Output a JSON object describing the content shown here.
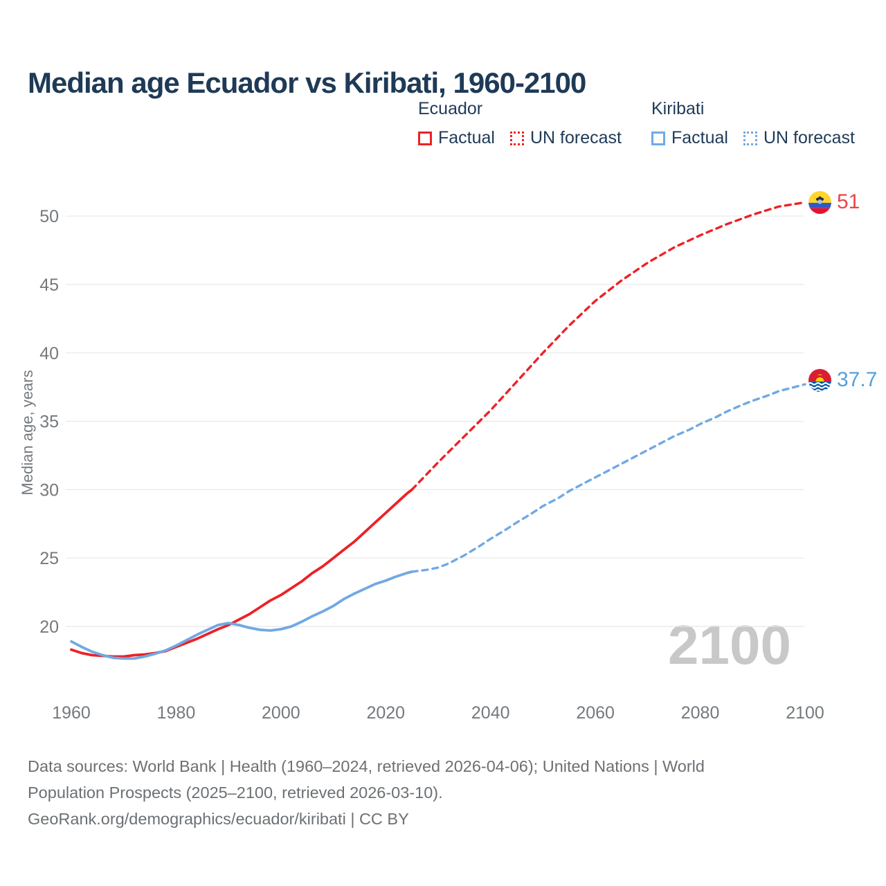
{
  "title": "Median age Ecuador vs Kiribati, 1960-2100",
  "legend": {
    "groups": [
      {
        "country": "Ecuador",
        "factual_label": "Factual",
        "forecast_label": "UN forecast"
      },
      {
        "country": "Kiribati",
        "factual_label": "Factual",
        "forecast_label": "UN forecast"
      }
    ]
  },
  "watermark": "2100",
  "end_labels": {
    "ecuador": "51",
    "kiribati": "37.7"
  },
  "footer": {
    "line1": "Data sources: World Bank | Health (1960–2024, retrieved 2026-04-06); United Nations | World",
    "line2": "Population Prospects (2025–2100, retrieved 2026-03-10).",
    "line3": "GeoRank.org/demographics/ecuador/kiribati | CC BY"
  },
  "colors": {
    "ecuador": "#ec2227",
    "kiribati": "#70a9e3",
    "ecuador_label": "#ef4343",
    "kiribati_label": "#54a0dc",
    "title_text": "#1e3a56",
    "axis_text": "#74797d",
    "footer_text": "#6b7074",
    "gridline": "#e8e8e8",
    "watermark": "#c8c8c8"
  },
  "chart_data": {
    "type": "line",
    "title": "Median age Ecuador vs Kiribati, 1960-2100",
    "xlabel": "",
    "ylabel": "Median age, years",
    "xlim": [
      1958,
      2103
    ],
    "ylim": [
      17.5,
      52.5
    ],
    "xticks": [
      1960,
      1980,
      2000,
      2020,
      2040,
      2060,
      2080,
      2100
    ],
    "yticks": [
      20,
      25,
      30,
      35,
      40,
      45,
      50
    ],
    "grid": "horizontal",
    "legend_position": "top",
    "series": [
      {
        "name": "Ecuador Factual",
        "style": "solid",
        "color": "#ec2227",
        "points": [
          [
            1960,
            18.3
          ],
          [
            1962,
            18.05
          ],
          [
            1964,
            17.9
          ],
          [
            1966,
            17.85
          ],
          [
            1968,
            17.8
          ],
          [
            1970,
            17.8
          ],
          [
            1972,
            17.9
          ],
          [
            1974,
            17.95
          ],
          [
            1976,
            18.05
          ],
          [
            1978,
            18.2
          ],
          [
            1980,
            18.5
          ],
          [
            1982,
            18.8
          ],
          [
            1984,
            19.1
          ],
          [
            1986,
            19.45
          ],
          [
            1988,
            19.8
          ],
          [
            1990,
            20.1
          ],
          [
            1992,
            20.5
          ],
          [
            1994,
            20.9
          ],
          [
            1996,
            21.4
          ],
          [
            1998,
            21.9
          ],
          [
            2000,
            22.3
          ],
          [
            2002,
            22.8
          ],
          [
            2004,
            23.3
          ],
          [
            2006,
            23.9
          ],
          [
            2008,
            24.4
          ],
          [
            2010,
            25.0
          ],
          [
            2012,
            25.6
          ],
          [
            2014,
            26.2
          ],
          [
            2016,
            26.9
          ],
          [
            2018,
            27.6
          ],
          [
            2020,
            28.3
          ],
          [
            2022,
            29.0
          ],
          [
            2024,
            29.7
          ],
          [
            2025,
            30.0
          ]
        ]
      },
      {
        "name": "Ecuador UN forecast",
        "style": "dashed",
        "color": "#ec2227",
        "points": [
          [
            2025,
            30.0
          ],
          [
            2030,
            32.0
          ],
          [
            2035,
            33.9
          ],
          [
            2040,
            35.8
          ],
          [
            2045,
            37.9
          ],
          [
            2050,
            40.0
          ],
          [
            2055,
            42.0
          ],
          [
            2060,
            43.8
          ],
          [
            2065,
            45.3
          ],
          [
            2070,
            46.6
          ],
          [
            2075,
            47.7
          ],
          [
            2080,
            48.6
          ],
          [
            2085,
            49.4
          ],
          [
            2090,
            50.1
          ],
          [
            2095,
            50.7
          ],
          [
            2100,
            51.0
          ]
        ]
      },
      {
        "name": "Kiribati Factual",
        "style": "solid",
        "color": "#70a9e3",
        "points": [
          [
            1960,
            18.9
          ],
          [
            1962,
            18.5
          ],
          [
            1964,
            18.15
          ],
          [
            1966,
            17.9
          ],
          [
            1968,
            17.7
          ],
          [
            1970,
            17.65
          ],
          [
            1972,
            17.65
          ],
          [
            1974,
            17.8
          ],
          [
            1976,
            18.0
          ],
          [
            1978,
            18.25
          ],
          [
            1980,
            18.6
          ],
          [
            1982,
            19.0
          ],
          [
            1984,
            19.4
          ],
          [
            1986,
            19.75
          ],
          [
            1988,
            20.1
          ],
          [
            1990,
            20.25
          ],
          [
            1992,
            20.1
          ],
          [
            1994,
            19.9
          ],
          [
            1996,
            19.75
          ],
          [
            1998,
            19.7
          ],
          [
            2000,
            19.8
          ],
          [
            2002,
            20.0
          ],
          [
            2004,
            20.35
          ],
          [
            2006,
            20.75
          ],
          [
            2008,
            21.1
          ],
          [
            2010,
            21.5
          ],
          [
            2012,
            22.0
          ],
          [
            2014,
            22.4
          ],
          [
            2016,
            22.75
          ],
          [
            2018,
            23.1
          ],
          [
            2020,
            23.35
          ],
          [
            2022,
            23.65
          ],
          [
            2024,
            23.9
          ],
          [
            2025,
            24.0
          ]
        ]
      },
      {
        "name": "Kiribati UN forecast",
        "style": "dashed",
        "color": "#70a9e3",
        "points": [
          [
            2025,
            24.0
          ],
          [
            2028,
            24.15
          ],
          [
            2030,
            24.3
          ],
          [
            2032,
            24.6
          ],
          [
            2035,
            25.2
          ],
          [
            2038,
            25.9
          ],
          [
            2040,
            26.4
          ],
          [
            2043,
            27.1
          ],
          [
            2045,
            27.6
          ],
          [
            2048,
            28.3
          ],
          [
            2050,
            28.8
          ],
          [
            2053,
            29.4
          ],
          [
            2055,
            29.9
          ],
          [
            2058,
            30.5
          ],
          [
            2060,
            30.9
          ],
          [
            2063,
            31.5
          ],
          [
            2065,
            31.9
          ],
          [
            2068,
            32.5
          ],
          [
            2070,
            32.9
          ],
          [
            2073,
            33.5
          ],
          [
            2075,
            33.9
          ],
          [
            2078,
            34.4
          ],
          [
            2080,
            34.8
          ],
          [
            2083,
            35.3
          ],
          [
            2085,
            35.7
          ],
          [
            2088,
            36.2
          ],
          [
            2090,
            36.5
          ],
          [
            2093,
            36.9
          ],
          [
            2095,
            37.2
          ],
          [
            2098,
            37.5
          ],
          [
            2100,
            37.7
          ]
        ]
      }
    ],
    "end_values": {
      "ecuador": 51,
      "kiribati": 37.7
    }
  }
}
